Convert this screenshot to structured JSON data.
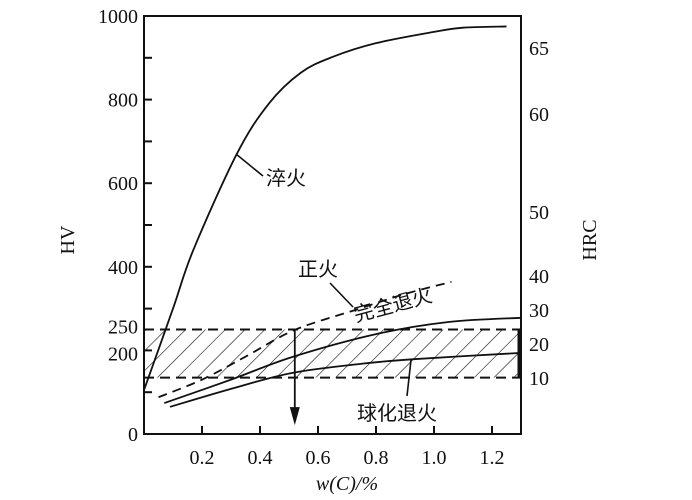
{
  "chart_data": {
    "type": "line",
    "xlabel": "w(C)/%",
    "ylabel_left": "HV",
    "ylabel_right": "HRC",
    "xlim": [
      0,
      1.3
    ],
    "ylim": [
      0,
      1000
    ],
    "x_ticks": [
      0.2,
      0.4,
      0.6,
      0.8,
      1.0,
      1.2
    ],
    "x_tick_labels": [
      "0.2",
      "0.4",
      "0.6",
      "0.8",
      "1.0",
      "1.2"
    ],
    "y_ticks": [
      0,
      200,
      250,
      400,
      600,
      800,
      1000
    ],
    "y_tick_labels": [
      "0",
      "200",
      "250",
      "400",
      "600",
      "800",
      "1000"
    ],
    "y_minor_ticks": [
      100,
      300,
      500,
      700,
      900
    ],
    "right_ticks": [
      {
        "label": "65",
        "hv": 923
      },
      {
        "label": "60",
        "hv": 766
      },
      {
        "label": "50",
        "hv": 531
      },
      {
        "label": "40",
        "hv": 378
      },
      {
        "label": "30",
        "hv": 297
      },
      {
        "label": "20",
        "hv": 215
      },
      {
        "label": "10",
        "hv": 134
      }
    ],
    "series": [
      {
        "name": "淬火",
        "style": "solid",
        "x": [
          0,
          0.1,
          0.17,
          0.32,
          0.43,
          0.54,
          0.65,
          0.8,
          1.0,
          1.1,
          1.25
        ],
        "y": [
          105,
          300,
          440,
          670,
          790,
          864,
          902,
          935,
          962,
          972,
          975
        ]
      },
      {
        "name": "完全退火",
        "style": "dashed",
        "x": [
          0.05,
          0.2,
          0.35,
          0.52,
          0.73,
          0.9,
          1.06
        ],
        "y": [
          88,
          130,
          185,
          249,
          297,
          335,
          364
        ]
      },
      {
        "name": "正火",
        "style": "solid",
        "x": [
          0.07,
          0.3,
          0.51,
          0.8,
          1.05,
          1.3
        ],
        "y": [
          74,
          130,
          184,
          239,
          268,
          278
        ]
      },
      {
        "name": "球化退火",
        "style": "solid",
        "x": [
          0.09,
          0.3,
          0.51,
          0.75,
          0.93,
          1.3
        ],
        "y": [
          65,
          108,
          146,
          168,
          179,
          194
        ]
      }
    ],
    "hatched_band": {
      "y_range": [
        135,
        250
      ],
      "x_range": [
        0,
        1.3
      ]
    },
    "arrow": {
      "x": 0.52,
      "from": 250,
      "to": 26
    },
    "annotations": [
      "淬火",
      "正火",
      "完全退火",
      "球化退火"
    ],
    "grid": false
  }
}
